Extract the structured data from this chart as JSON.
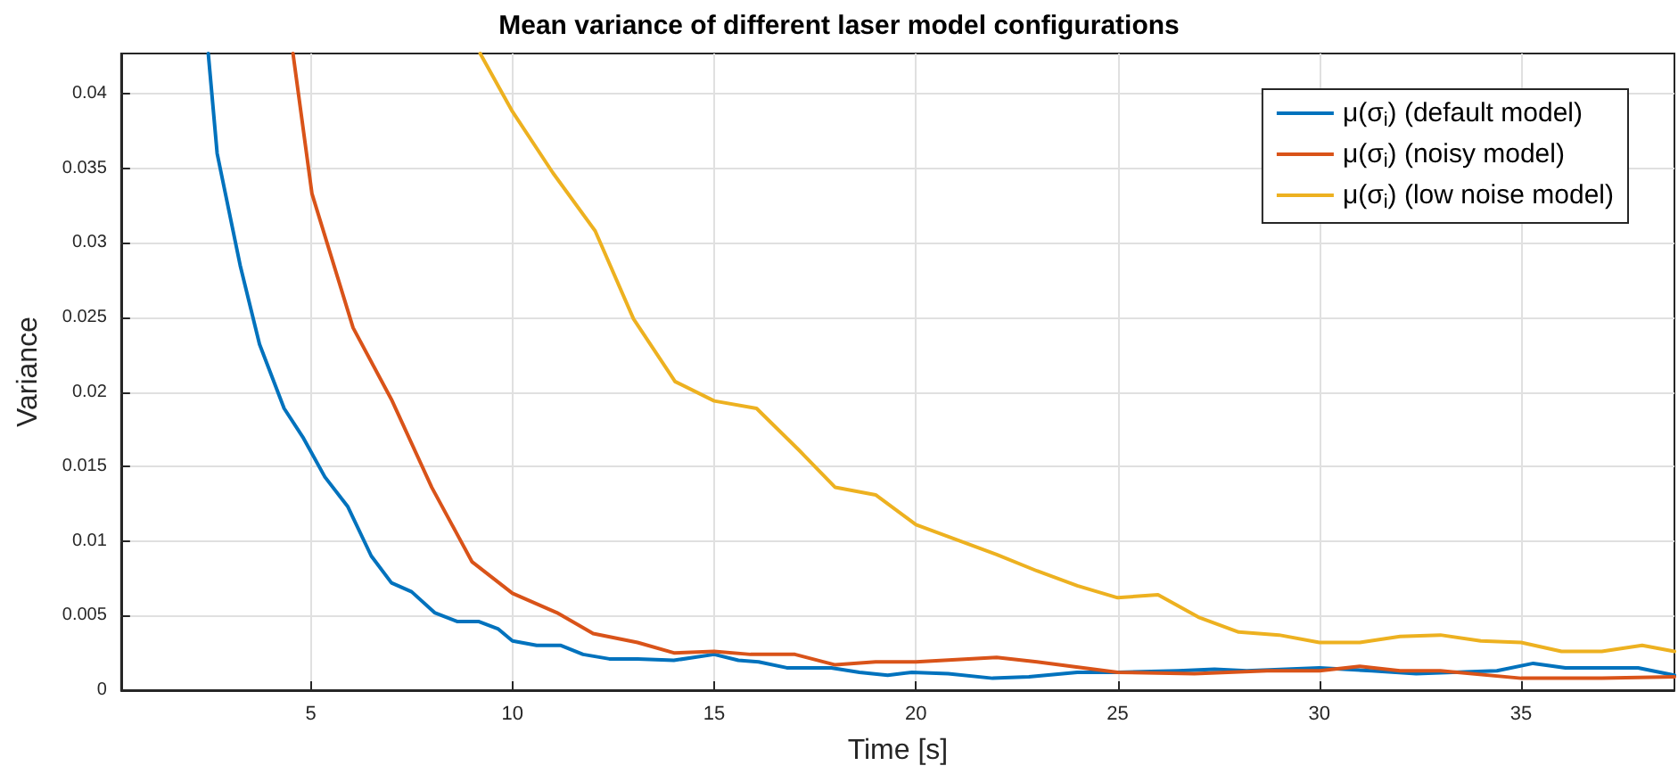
{
  "chart_data": {
    "type": "line",
    "title": "Mean variance of different laser model configurations",
    "xlabel": "Time [s]",
    "ylabel": "Variance",
    "xlim": [
      0.3,
      38.8
    ],
    "ylim": [
      0,
      0.0427
    ],
    "xticks": [
      5,
      10,
      15,
      20,
      25,
      30,
      35
    ],
    "yticks": [
      0,
      0.005,
      0.01,
      0.015,
      0.02,
      0.025,
      0.03,
      0.035,
      0.04
    ],
    "grid": true,
    "legend": "top right",
    "marker": "none",
    "line_style": "solid",
    "series": [
      {
        "name": "μ(σ$_{i}$) (default model)",
        "color": "#0072bd",
        "x": [
          2.46,
          2.68,
          3.25,
          3.73,
          4.34,
          4.82,
          5.35,
          5.92,
          6.5,
          7.0,
          7.5,
          8.07,
          8.64,
          9.17,
          9.65,
          10,
          10.6,
          11.2,
          11.75,
          12.4,
          13.1,
          14,
          15,
          15.6,
          16.1,
          16.8,
          17.9,
          18.6,
          19.3,
          19.9,
          20.8,
          21.9,
          22.8,
          24,
          25,
          26.5,
          27.4,
          28.2,
          30,
          31.3,
          32.4,
          33.3,
          34.4,
          35.3,
          36.1,
          37.9,
          38.8
        ],
        "values": [
          0.0427,
          0.036,
          0.0285,
          0.0232,
          0.0189,
          0.0169,
          0.0143,
          0.0123,
          0.009,
          0.0072,
          0.0066,
          0.0052,
          0.0046,
          0.0046,
          0.0041,
          0.0033,
          0.003,
          0.003,
          0.0024,
          0.0021,
          0.0021,
          0.002,
          0.0024,
          0.002,
          0.0019,
          0.0015,
          0.0015,
          0.0012,
          0.001,
          0.0012,
          0.0011,
          0.0008,
          0.0009,
          0.0012,
          0.0012,
          0.0013,
          0.0014,
          0.0013,
          0.0015,
          0.0013,
          0.0011,
          0.0012,
          0.0013,
          0.0018,
          0.0015,
          0.0015,
          0.001
        ]
      },
      {
        "name": "μ(σ$_{i}$) (noisy model)",
        "color": "#d95319",
        "x": [
          4.56,
          5.03,
          6.05,
          7.0,
          8.0,
          9.0,
          10,
          11.1,
          12,
          13.1,
          14,
          15,
          15.9,
          17,
          18,
          19,
          20,
          22,
          23,
          25,
          26.9,
          28.7,
          30,
          31,
          32,
          33,
          35,
          37,
          38.8
        ],
        "values": [
          0.0427,
          0.0333,
          0.0243,
          0.0195,
          0.0136,
          0.0086,
          0.0065,
          0.0052,
          0.0038,
          0.0032,
          0.0025,
          0.0026,
          0.0024,
          0.0024,
          0.0017,
          0.0019,
          0.0019,
          0.0022,
          0.0019,
          0.0012,
          0.0011,
          0.0013,
          0.0013,
          0.0016,
          0.0013,
          0.0013,
          0.0008,
          0.0008,
          0.0009
        ]
      },
      {
        "name": "μ(σ$_{i}$) (low noise model)",
        "color": "#edb120",
        "x": [
          9.2,
          10,
          11,
          12.05,
          13,
          14.03,
          15,
          16.05,
          17.1,
          18,
          19,
          20,
          22,
          23,
          24,
          25,
          26,
          27,
          28,
          29,
          30,
          31,
          32,
          33,
          34,
          35,
          36,
          37,
          38,
          38.8
        ],
        "values": [
          0.0427,
          0.0388,
          0.0347,
          0.0308,
          0.0249,
          0.0207,
          0.0194,
          0.0189,
          0.0161,
          0.0136,
          0.0131,
          0.0111,
          0.0091,
          0.008,
          0.007,
          0.0062,
          0.0064,
          0.0049,
          0.0039,
          0.0037,
          0.0032,
          0.0032,
          0.0036,
          0.0037,
          0.0033,
          0.0032,
          0.0026,
          0.0026,
          0.003,
          0.0026
        ]
      }
    ]
  }
}
